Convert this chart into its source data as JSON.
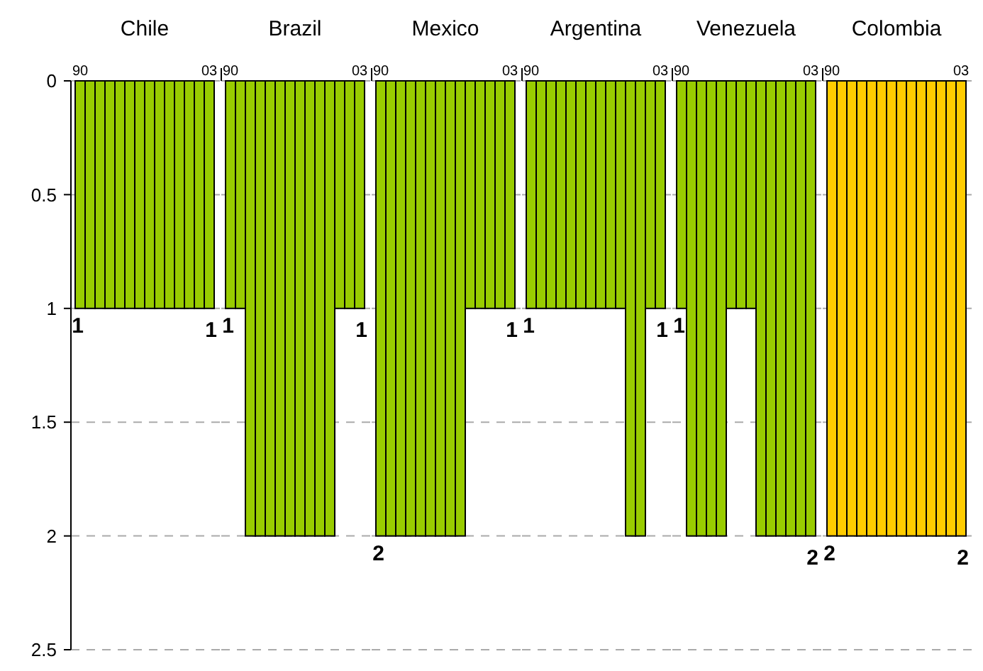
{
  "chart_data": [
    {
      "type": "bar",
      "title": "Chile",
      "categories": [
        "90",
        null,
        null,
        null,
        null,
        null,
        null,
        null,
        null,
        null,
        null,
        null,
        null,
        "03"
      ],
      "values": [
        1,
        1,
        1,
        1,
        1,
        1,
        1,
        1,
        1,
        1,
        1,
        1,
        1,
        1
      ],
      "value_labels": [
        "1",
        null,
        null,
        null,
        null,
        null,
        null,
        null,
        null,
        null,
        null,
        null,
        null,
        "1"
      ],
      "color": "#99cc00",
      "ylim": [
        2.5,
        0
      ],
      "yticks": [
        0,
        0.5,
        1,
        1.5,
        2,
        2.5
      ],
      "grid": "y"
    },
    {
      "type": "bar",
      "title": "Brazil",
      "categories": [
        "90",
        null,
        null,
        null,
        null,
        null,
        null,
        null,
        null,
        null,
        null,
        null,
        null,
        "03"
      ],
      "values": [
        1,
        1,
        2,
        2,
        2,
        2,
        2,
        2,
        2,
        2,
        2,
        1,
        1,
        1
      ],
      "value_labels": [
        "1",
        null,
        null,
        null,
        null,
        null,
        null,
        null,
        null,
        null,
        null,
        null,
        null,
        "1"
      ],
      "color": "#99cc00",
      "ylim": [
        2.5,
        0
      ],
      "yticks": [
        0,
        0.5,
        1,
        1.5,
        2,
        2.5
      ],
      "grid": "y",
      "tick_labels": "x"
    },
    {
      "type": "bar",
      "title": "Mexico",
      "categories": [
        "90",
        null,
        null,
        null,
        null,
        null,
        null,
        null,
        null,
        null,
        null,
        null,
        null,
        "03"
      ],
      "values": [
        2,
        2,
        2,
        2,
        2,
        2,
        2,
        2,
        2,
        1,
        1,
        1,
        1,
        1
      ],
      "value_labels": [
        "2",
        null,
        null,
        null,
        null,
        null,
        null,
        null,
        null,
        null,
        null,
        null,
        null,
        "1"
      ],
      "color": "#99cc00",
      "ylim": [
        2.5,
        0
      ],
      "yticks": [
        0,
        0.5,
        1,
        1.5,
        2,
        2.5
      ],
      "grid": "y",
      "tick_labels": "x"
    },
    {
      "type": "bar",
      "title": "Argentina",
      "categories": [
        "90",
        null,
        null,
        null,
        null,
        null,
        null,
        null,
        null,
        null,
        null,
        null,
        null,
        "03"
      ],
      "values": [
        1,
        1,
        1,
        1,
        1,
        1,
        1,
        1,
        1,
        1,
        2,
        2,
        1,
        1
      ],
      "value_labels": [
        "1",
        null,
        null,
        null,
        null,
        null,
        null,
        null,
        null,
        null,
        null,
        null,
        null,
        "1"
      ],
      "color": "#99cc00",
      "ylim": [
        2.5,
        0
      ],
      "yticks": [
        0,
        0.5,
        1,
        1.5,
        2,
        2.5
      ],
      "grid": "y",
      "tick_labels": "x"
    },
    {
      "type": "bar",
      "title": "Venezuela",
      "categories": [
        "90",
        null,
        null,
        null,
        null,
        null,
        null,
        null,
        null,
        null,
        null,
        null,
        null,
        "03"
      ],
      "values": [
        1,
        2,
        2,
        2,
        2,
        1,
        1,
        1,
        2,
        2,
        2,
        2,
        2,
        2
      ],
      "value_labels": [
        "1",
        null,
        null,
        null,
        null,
        null,
        null,
        null,
        null,
        null,
        null,
        null,
        null,
        "2"
      ],
      "color": "#99cc00",
      "ylim": [
        2.5,
        0
      ],
      "yticks": [
        0,
        0.5,
        1,
        1.5,
        2,
        2.5
      ],
      "grid": "y",
      "tick_labels": "x"
    },
    {
      "type": "bar",
      "title": "Colombia",
      "categories": [
        "90",
        null,
        null,
        null,
        null,
        null,
        null,
        null,
        null,
        null,
        null,
        null,
        null,
        "03"
      ],
      "values": [
        2,
        2,
        2,
        2,
        2,
        2,
        2,
        2,
        2,
        2,
        2,
        2,
        2,
        2
      ],
      "value_labels": [
        "2",
        null,
        null,
        null,
        null,
        null,
        null,
        null,
        null,
        null,
        null,
        null,
        null,
        "2"
      ],
      "color": "#ffcc00",
      "ylim": [
        2.5,
        0
      ],
      "yticks": [
        0,
        0.5,
        1,
        1.5,
        2,
        2.5
      ],
      "grid": "y",
      "tick_labels": "x"
    }
  ]
}
